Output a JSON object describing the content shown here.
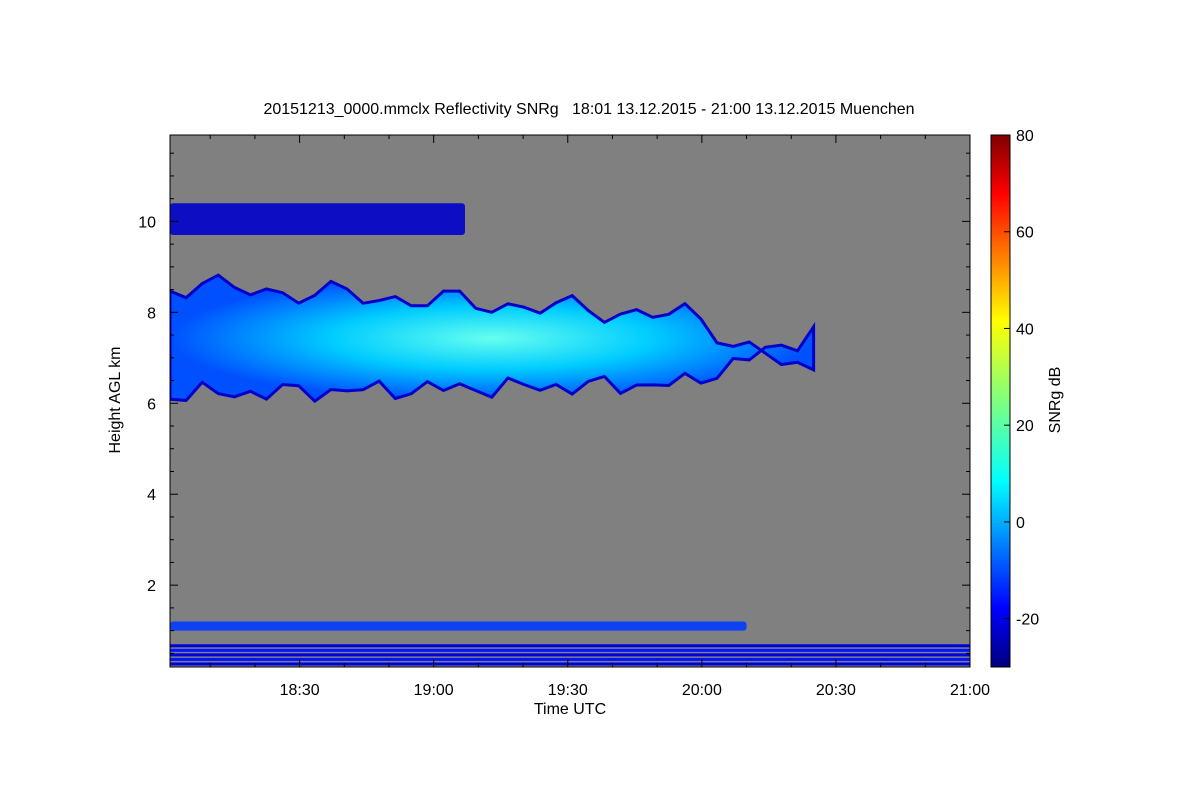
{
  "chart_data": {
    "type": "heatmap",
    "title": "20151213_0000.mmclx Reflectivity SNRg   18:01 13.12.2015 - 21:00 13.12.2015 Muenchen",
    "xlabel": "Time UTC",
    "ylabel": "Height AGL km",
    "colorbar_label": "SNRg dB",
    "x_range": [
      "18:01",
      "21:00"
    ],
    "x_ticks": [
      "18:30",
      "19:00",
      "19:30",
      "20:00",
      "20:30",
      "21:00"
    ],
    "y_range": [
      0.2,
      11.9
    ],
    "y_ticks": [
      "2",
      "4",
      "6",
      "8",
      "10"
    ],
    "colorbar_range": [
      -30,
      80
    ],
    "colorbar_ticks": [
      "-20",
      "0",
      "20",
      "40",
      "60",
      "80"
    ],
    "background_color": "#808080",
    "colormap": "jet",
    "features": [
      {
        "name": "cirrus-layer",
        "time_start": "18:01",
        "time_end": "19:07",
        "height_low": 9.7,
        "height_high": 10.4,
        "snr_db": -22
      },
      {
        "name": "main-cloud-layer",
        "time_start": "18:01",
        "time_end": "20:25",
        "height_low": 6.2,
        "height_high": 8.6,
        "snr_db": 5
      },
      {
        "name": "low-echo-layer",
        "time_start": "18:01",
        "time_end": "20:10",
        "height_low": 1.0,
        "height_high": 1.2,
        "snr_db": -10
      },
      {
        "name": "near-ground-clutter",
        "time_start": "18:01",
        "time_end": "21:00",
        "height_low": 0.2,
        "height_high": 0.7,
        "snr_db": -20
      }
    ]
  }
}
